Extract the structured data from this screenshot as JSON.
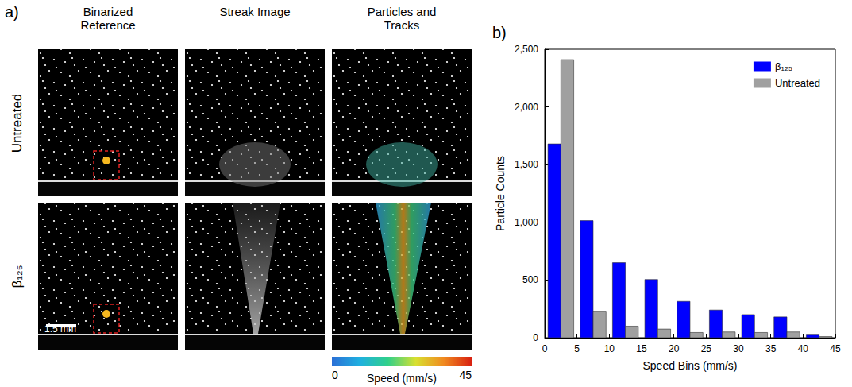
{
  "panel_a": {
    "letter": "a)",
    "column_heads": [
      "Binarized Reference",
      "Streak Image",
      "Particles and Tracks"
    ],
    "row_heads": [
      "Untreated",
      "β₁₂₅"
    ],
    "scale_bar": "1.5 mm",
    "colorbar": {
      "title": "Speed (mm/s)",
      "range": [
        0,
        45
      ],
      "ticks": [
        0,
        45
      ]
    }
  },
  "chart_data": {
    "type": "bar",
    "label": "b)",
    "xlabel": "Speed Bins (mm/s)",
    "ylabel": "Particle Counts",
    "bins": [
      0,
      5,
      10,
      15,
      20,
      25,
      30,
      35,
      40,
      45
    ],
    "series": [
      {
        "name": "β₁₂₅",
        "color": "#0000ff",
        "values": [
          1680,
          1015,
          650,
          505,
          315,
          240,
          200,
          180,
          30
        ]
      },
      {
        "name": "Untreated",
        "color": "#a0a0a0",
        "values": [
          2410,
          230,
          100,
          75,
          45,
          50,
          45,
          50,
          10
        ]
      }
    ],
    "xlim": [
      0,
      45
    ],
    "xticks": [
      0,
      5,
      10,
      15,
      20,
      25,
      30,
      35,
      40,
      45
    ],
    "ylim": [
      0,
      2500
    ],
    "yticks": [
      0,
      500,
      1000,
      1500,
      2000,
      2500
    ],
    "legend": "upper right",
    "grid": false
  }
}
